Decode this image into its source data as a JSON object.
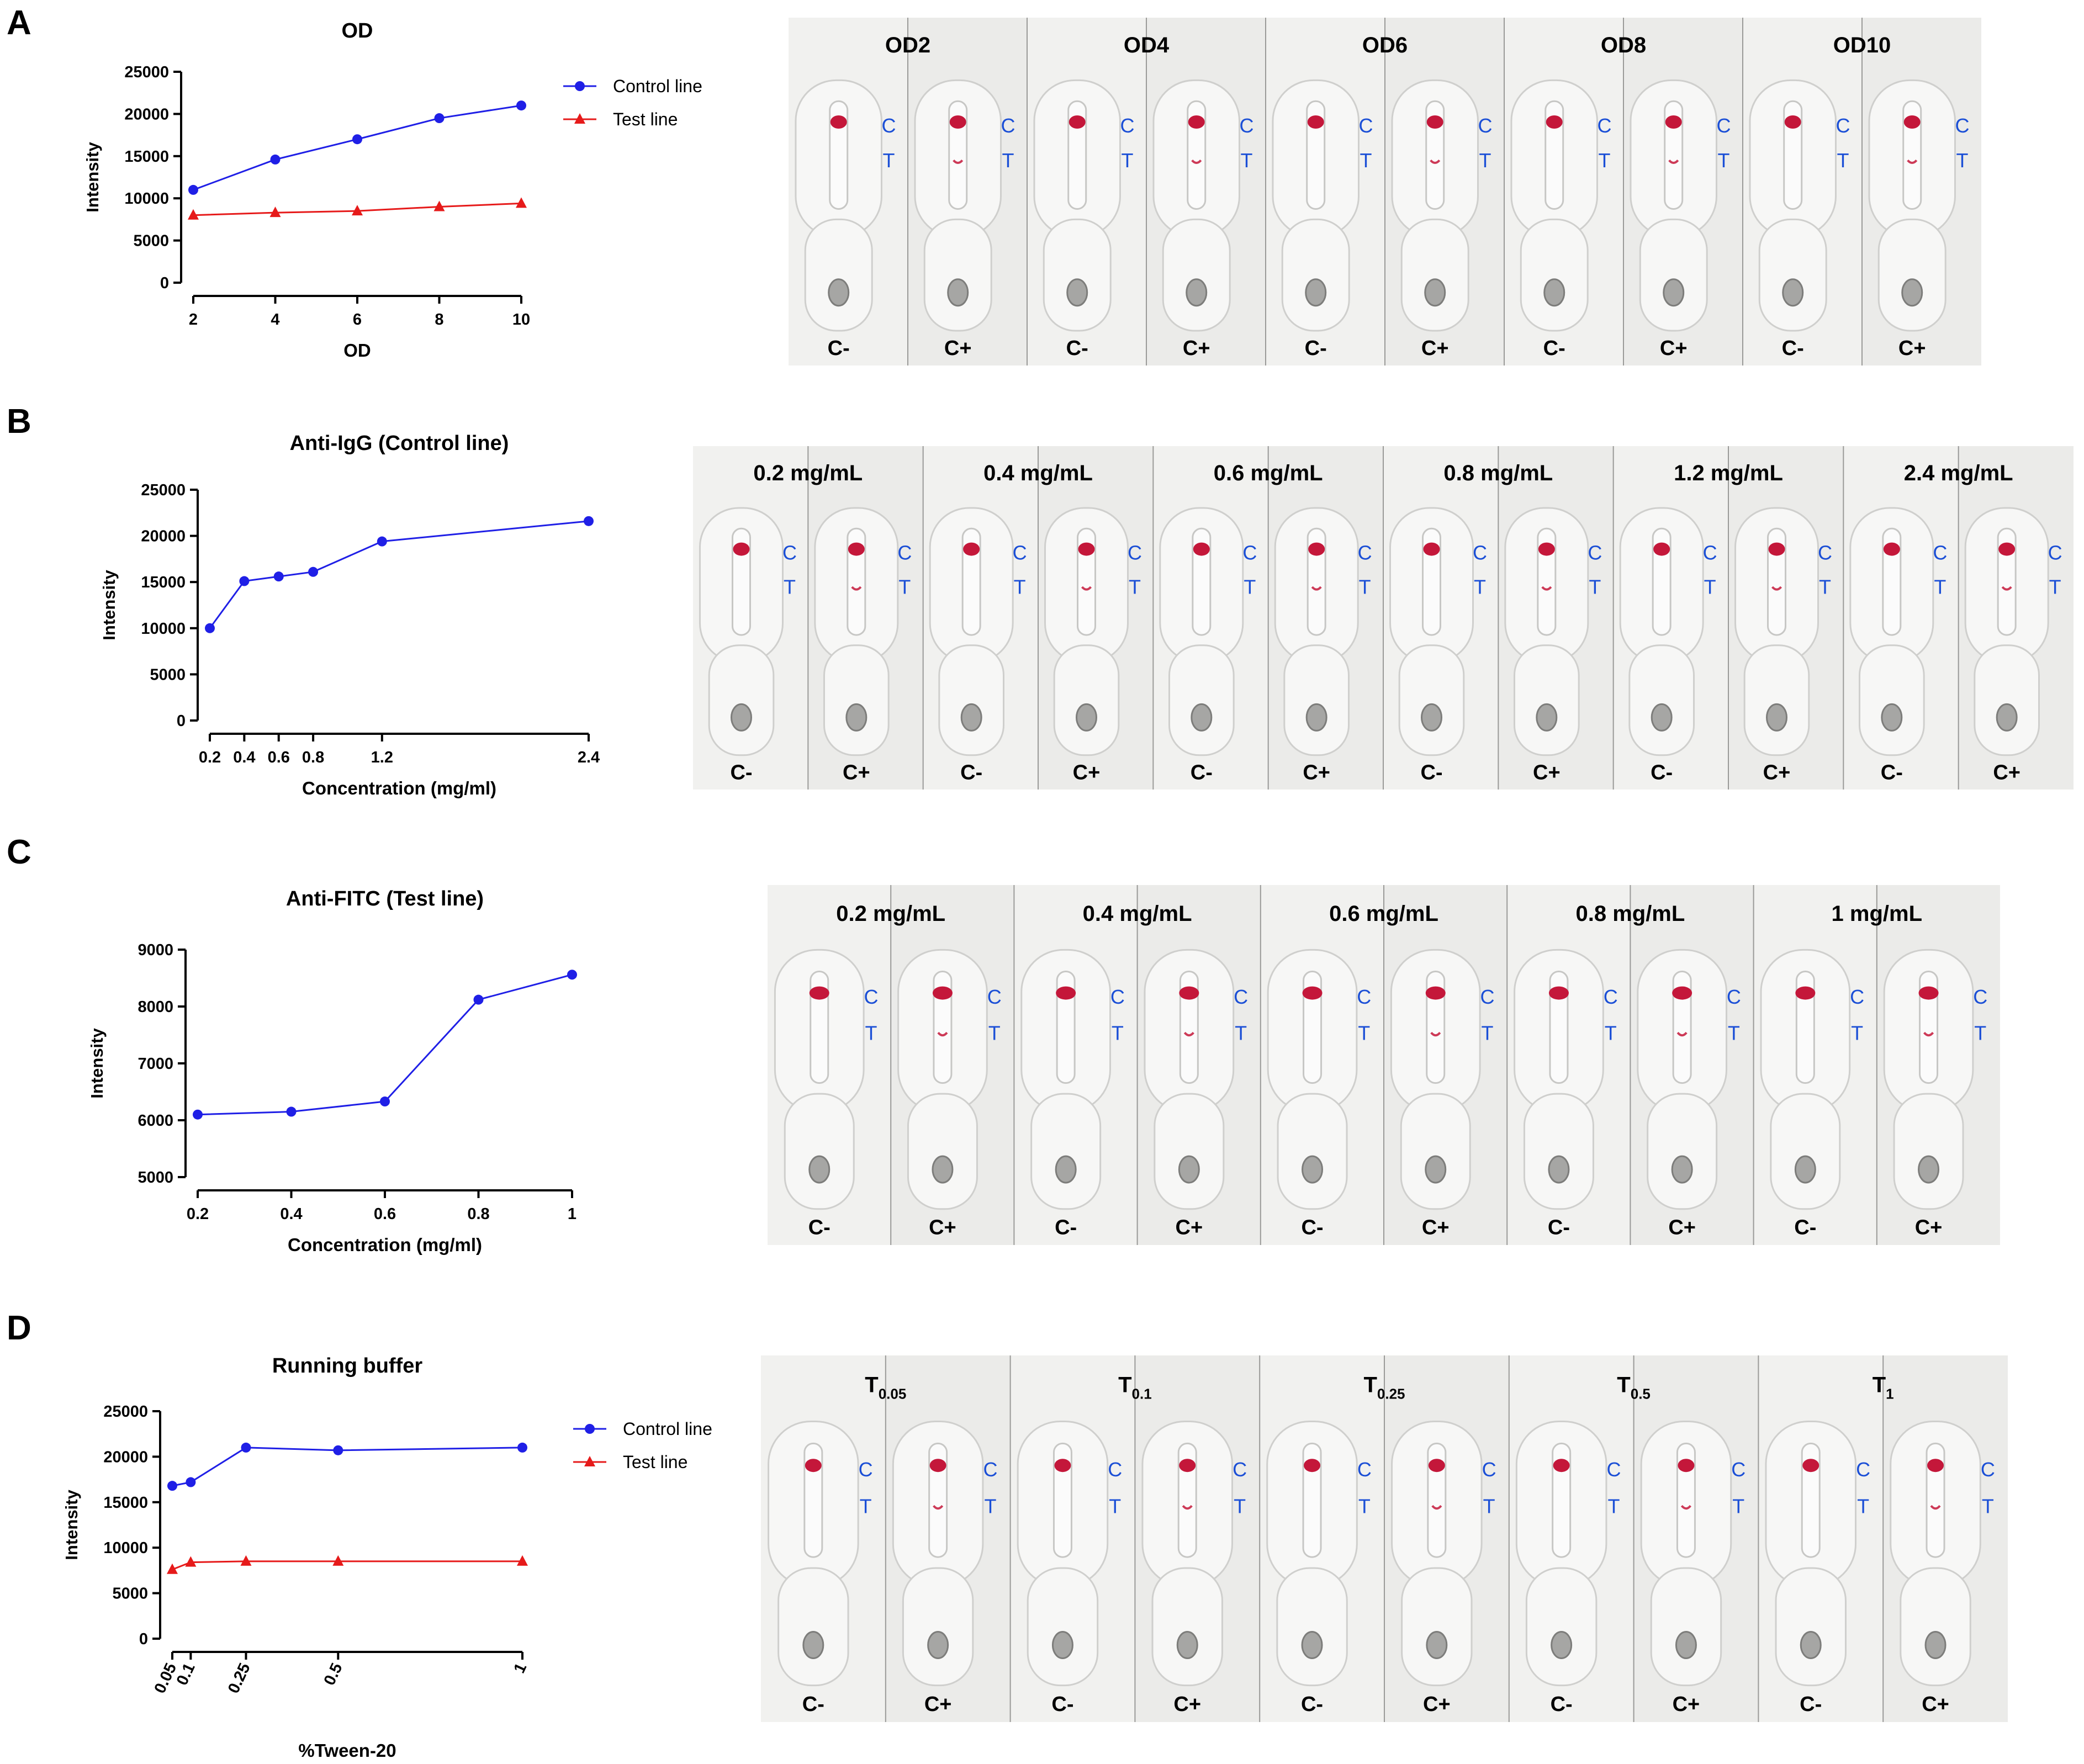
{
  "colors": {
    "control": "#1f1fe6",
    "test": "#e61a1a",
    "strip_label": "#1b4fd6",
    "blood": "#c4173a",
    "axis": "#000000"
  },
  "panels": {
    "A": {
      "letter": "A",
      "photo": {
        "groups": [
          "OD2",
          "OD4",
          "OD6",
          "OD8",
          "OD10"
        ],
        "neg_label": "C-",
        "pos_label": "C+",
        "c_label": "C",
        "t_label": "T"
      }
    },
    "B": {
      "letter": "B",
      "photo": {
        "groups": [
          "0.2 mg/mL",
          "0.4 mg/mL",
          "0.6 mg/mL",
          "0.8 mg/mL",
          "1.2 mg/mL",
          "2.4 mg/mL"
        ],
        "neg_label": "C-",
        "pos_label": "C+",
        "c_label": "C",
        "t_label": "T"
      }
    },
    "C": {
      "letter": "C",
      "photo": {
        "groups": [
          "0.2 mg/mL",
          "0.4 mg/mL",
          "0.6 mg/mL",
          "0.8 mg/mL",
          "1 mg/mL"
        ],
        "neg_label": "C-",
        "pos_label": "C+",
        "c_label": "C",
        "t_label": "T"
      }
    },
    "D": {
      "letter": "D",
      "photo": {
        "groups": [
          {
            "base": "T",
            "sub": "0.05"
          },
          {
            "base": "T",
            "sub": "0.1"
          },
          {
            "base": "T",
            "sub": "0.25"
          },
          {
            "base": "T",
            "sub": "0.5"
          },
          {
            "base": "T",
            "sub": "1"
          }
        ],
        "neg_label": "C-",
        "pos_label": "C+",
        "c_label": "C",
        "t_label": "T"
      }
    }
  },
  "chart_data": [
    {
      "id": "A",
      "type": "line",
      "title": "OD",
      "xlabel": "OD",
      "ylabel": "Intensity",
      "xlim": [
        2,
        10
      ],
      "ylim": [
        0,
        25000
      ],
      "xticks": [
        "2",
        "4",
        "6",
        "8",
        "10"
      ],
      "yticks": [
        "0",
        "5000",
        "10000",
        "15000",
        "20000",
        "25000"
      ],
      "legend": "right",
      "series": [
        {
          "name": "Control line",
          "marker": "circle",
          "x": [
            2,
            4,
            6,
            8,
            10
          ],
          "y": [
            11000,
            14600,
            17000,
            19500,
            21000
          ]
        },
        {
          "name": "Test line",
          "marker": "triangle",
          "x": [
            2,
            4,
            6,
            8,
            10
          ],
          "y": [
            8000,
            8300,
            8500,
            9000,
            9400
          ]
        }
      ]
    },
    {
      "id": "B",
      "type": "line",
      "title": "Anti-IgG (Control line)",
      "xlabel": "Concentration (mg/ml)",
      "ylabel": "Intensity",
      "xlim": [
        0.2,
        2.4
      ],
      "ylim": [
        0,
        25000
      ],
      "xticks": [
        "0.2",
        "0.4",
        "0.6",
        "0.8",
        "1.2",
        "2.4"
      ],
      "yticks": [
        "0",
        "5000",
        "10000",
        "15000",
        "20000",
        "25000"
      ],
      "legend": "none",
      "series": [
        {
          "name": "Control line",
          "marker": "circle",
          "x": [
            0.2,
            0.4,
            0.6,
            0.8,
            1.2,
            2.4
          ],
          "y": [
            10000,
            15100,
            15600,
            16100,
            19400,
            21600
          ]
        }
      ]
    },
    {
      "id": "C",
      "type": "line",
      "title": "Anti-FITC (Test line)",
      "xlabel": "Concentration (mg/ml)",
      "ylabel": "Intensity",
      "xlim": [
        0.2,
        1
      ],
      "ylim": [
        5000,
        9000
      ],
      "xticks": [
        "0.2",
        "0.4",
        "0.6",
        "0.8",
        "1"
      ],
      "yticks": [
        "5000",
        "6000",
        "7000",
        "8000",
        "9000"
      ],
      "legend": "none",
      "series": [
        {
          "name": "Test line",
          "marker": "circle",
          "x": [
            0.2,
            0.4,
            0.6,
            0.8,
            1.0
          ],
          "y": [
            6100,
            6150,
            6330,
            8120,
            8560
          ]
        }
      ]
    },
    {
      "id": "D",
      "type": "line",
      "title": "Running buffer",
      "xlabel": "%Tween-20",
      "ylabel": "Intensity",
      "xlim": [
        0.05,
        1
      ],
      "ylim": [
        0,
        25000
      ],
      "xticks": [
        "0.05",
        "0.1",
        "0.25",
        "0.5",
        "1"
      ],
      "yticks": [
        "0",
        "5000",
        "10000",
        "15000",
        "20000",
        "25000"
      ],
      "legend": "right",
      "series": [
        {
          "name": "Control line",
          "marker": "circle",
          "x": [
            0.05,
            0.1,
            0.25,
            0.5,
            1.0
          ],
          "y": [
            16800,
            17200,
            21000,
            20700,
            21000
          ]
        },
        {
          "name": "Test line",
          "marker": "triangle",
          "x": [
            0.05,
            0.1,
            0.25,
            0.5,
            1.0
          ],
          "y": [
            7600,
            8400,
            8500,
            8500,
            8500
          ]
        }
      ]
    }
  ]
}
